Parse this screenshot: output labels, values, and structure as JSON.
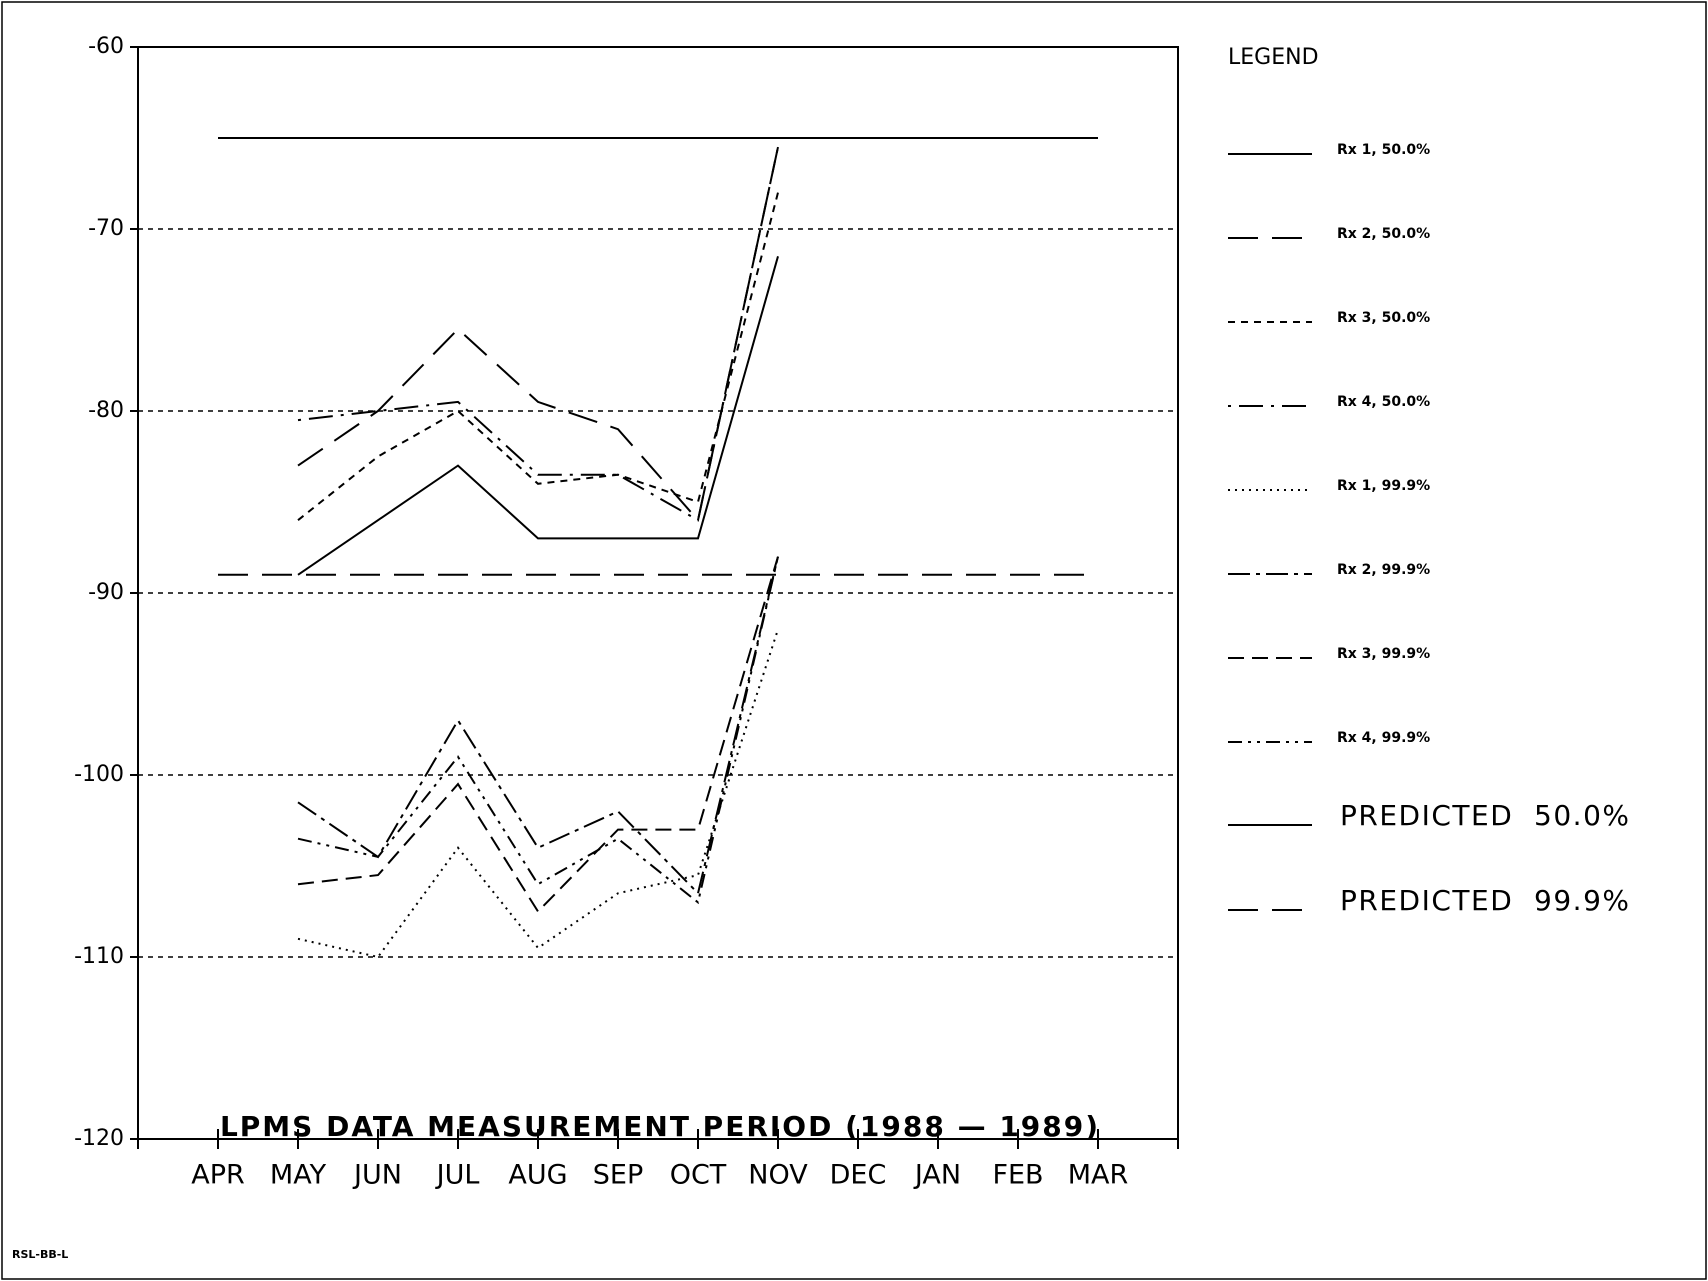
{
  "chart_data": {
    "type": "line",
    "categories": [
      "APR",
      "MAY",
      "JUN",
      "JUL",
      "AUG",
      "SEP",
      "OCT",
      "NOV",
      "DEC",
      "JAN",
      "FEB",
      "MAR"
    ],
    "xlabel": "LPMS DATA MEASUREMENT PERIOD (1988 — 1989)",
    "legend_title": "LEGEND",
    "footnote": "RSL-BB-L",
    "ylim": [
      -120,
      -60
    ],
    "yticks": [
      -120,
      -110,
      -100,
      -90,
      -80,
      -70,
      -60
    ],
    "grid": true,
    "series": [
      {
        "name": "Rx 1, 50.0%",
        "color": "#000000",
        "style": "solid",
        "values": [
          null,
          -89,
          -86,
          -83,
          -87,
          -87,
          -87,
          -71.5,
          null,
          null,
          null,
          null
        ]
      },
      {
        "name": "Rx 2, 50.0%",
        "color": "#000000",
        "style": "long-dash",
        "values": [
          null,
          -83,
          -80,
          -75.5,
          -79.5,
          -81,
          -86,
          -65.5,
          null,
          null,
          null,
          null
        ]
      },
      {
        "name": "Rx 3, 50.0%",
        "color": "#000000",
        "style": "short-dash",
        "values": [
          null,
          -86,
          -82.5,
          -80,
          -84,
          -83.5,
          -85,
          -68,
          null,
          null,
          null,
          null
        ]
      },
      {
        "name": "Rx 4, 50.0%",
        "color": "#000000",
        "style": "dot-dash",
        "values": [
          null,
          -80.5,
          -80,
          -79.5,
          -83.5,
          -83.5,
          -86,
          -65.5,
          null,
          null,
          null,
          null
        ]
      },
      {
        "name": "Rx 1, 99.9%",
        "color": "#000000",
        "style": "dotted",
        "values": [
          null,
          -109,
          -110,
          -104,
          -109.5,
          -106.5,
          -105.5,
          -92,
          null,
          null,
          null,
          null
        ]
      },
      {
        "name": "Rx 2, 99.9%",
        "color": "#000000",
        "style": "dash-dot",
        "values": [
          null,
          -101.5,
          -104.5,
          -97,
          -104,
          -102,
          -106.5,
          -88,
          null,
          null,
          null,
          null
        ]
      },
      {
        "name": "Rx 3, 99.9%",
        "color": "#000000",
        "style": "dash",
        "values": [
          null,
          -106,
          -105.5,
          -100.5,
          -107.5,
          -103,
          -103,
          -88,
          null,
          null,
          null,
          null
        ]
      },
      {
        "name": "Rx 4, 99.9%",
        "color": "#000000",
        "style": "dash-dot-dot",
        "values": [
          null,
          -103.5,
          -104.5,
          -99,
          -106,
          -103.5,
          -107,
          -88,
          null,
          null,
          null,
          null
        ]
      },
      {
        "name": "PREDICTED  50.0%",
        "color": "#000000",
        "style": "solid",
        "values": [
          -65,
          -65,
          -65,
          -65,
          -65,
          -65,
          -65,
          -65,
          -65,
          -65,
          -65,
          -65
        ]
      },
      {
        "name": "PREDICTED  99.9%",
        "color": "#000000",
        "style": "long-dash",
        "values": [
          -89,
          -89,
          -89,
          -89,
          -89,
          -89,
          -89,
          -89,
          -89,
          -89,
          -89,
          -89
        ]
      }
    ]
  }
}
